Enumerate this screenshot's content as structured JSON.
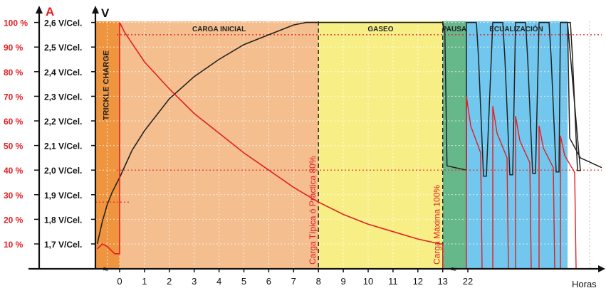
{
  "chart_data": {
    "type": "line",
    "axis_left_title": "A",
    "axis_mid_title": "V",
    "xlabel": "Horas",
    "y_amp_ticks": [
      "10 %",
      "20 %",
      "30 %",
      "40 %",
      "50 %",
      "60 %",
      "70 %",
      "80 %",
      "90 %",
      "100 %"
    ],
    "y_volt_ticks": [
      "1,7 V/Cel.",
      "1,8 V/Cel.",
      "1,9 V/Cel.",
      "2,0 V/Cel.",
      "2,1 V/Cel.",
      "2,2 V/Cel.",
      "2,3 V/Cel.",
      "2,4 V/Cel.",
      "2,5 V/Cel.",
      "2,6 V/Cel."
    ],
    "x_ticks": [
      "0",
      "1",
      "2",
      "3",
      "4",
      "5",
      "6",
      "7",
      "8",
      "9",
      "10",
      "11",
      "12",
      "13",
      "22"
    ],
    "phases": [
      {
        "label": "TRICKLE CHARGE",
        "from_h": -1,
        "to_h": 0,
        "color": "#f0953f"
      },
      {
        "label": "CARGA INICIAL",
        "from_h": 0,
        "to_h": 8,
        "color": "#f4be8e"
      },
      {
        "label": "GASEO",
        "from_h": 8,
        "to_h": 13,
        "color": "#f7ef86"
      },
      {
        "label": "PAUSA",
        "from_h": 13,
        "to_h": 14,
        "color": "#66b88a"
      },
      {
        "label": "ECUALIZACIÓN",
        "from_h": 14,
        "to_h": 19.9,
        "color": "#71c7ee"
      }
    ],
    "annotations": [
      {
        "text": "Carga Típica ó Práctica 80%",
        "at_h": 8,
        "color": "#e31e24"
      },
      {
        "text": "Carga Máxima 100%",
        "at_h": 13,
        "color": "#e31e24"
      }
    ],
    "reference_lines": [
      {
        "level_pct": 95,
        "color": "#e31e24",
        "style": "dotted"
      },
      {
        "level_pct": 40,
        "color": "#e31e24",
        "style": "dotted"
      },
      {
        "level_pct": 27,
        "color": "#e31e24",
        "style": "dotted"
      }
    ],
    "series": [
      {
        "color": "#222222",
        "x": [
          -0.9,
          -0.7,
          -0.5,
          -0.3,
          -0.1,
          0,
          0.5,
          1,
          2,
          3,
          4,
          5,
          6,
          7,
          7.5,
          8,
          13
        ],
        "y": [
          1.7,
          1.79,
          1.86,
          1.91,
          1.95,
          1.97,
          2.08,
          2.16,
          2.29,
          2.38,
          2.45,
          2.51,
          2.55,
          2.59,
          2.6,
          2.6,
          2.6
        ]
      },
      {
        "color": "#e31e24",
        "x": [
          -0.9,
          -0.7,
          -0.5,
          -0.2,
          0,
          0,
          0.2,
          1,
          2,
          3,
          4,
          5,
          6,
          7,
          8,
          9,
          10,
          11,
          12,
          12.9,
          13
        ],
        "y": [
          8,
          10,
          9,
          6,
          6,
          100,
          96,
          84,
          73,
          63,
          55,
          47,
          40,
          33,
          27,
          22,
          18,
          15,
          12,
          10,
          10
        ]
      }
    ]
  }
}
